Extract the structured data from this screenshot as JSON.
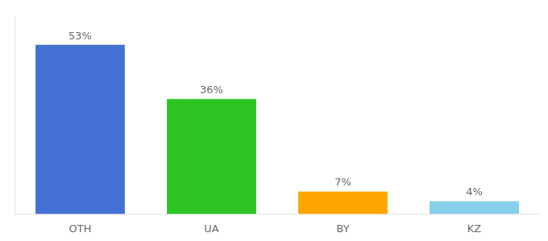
{
  "chart_data": {
    "type": "bar",
    "categories": [
      "OTH",
      "UA",
      "BY",
      "KZ"
    ],
    "values": [
      53,
      36,
      7,
      4
    ],
    "value_labels": [
      "53%",
      "36%",
      "7%",
      "4%"
    ],
    "colors": [
      "#4472D4",
      "#2DC424",
      "#FFA500",
      "#87CEEB"
    ],
    "ylim": [
      0,
      62
    ],
    "data_labels": true,
    "tick_labels": "x",
    "grid": false
  }
}
